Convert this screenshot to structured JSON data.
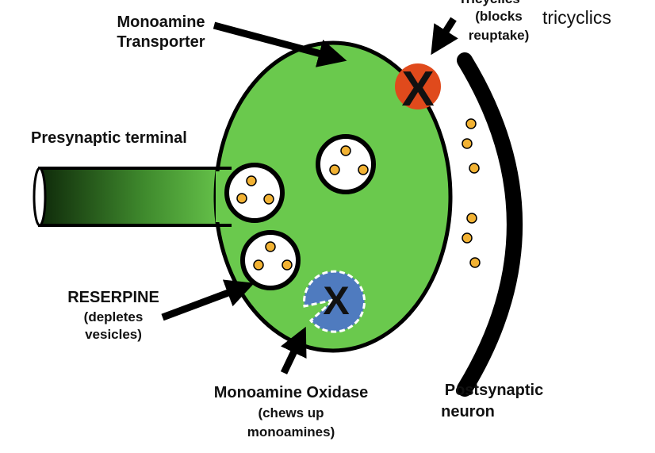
{
  "labels": {
    "transporter_line1": "Monoamine",
    "transporter_line2": "Transporter",
    "presynaptic": "Presynaptic terminal",
    "reserpine_line1": "RESERPINE",
    "reserpine_line2": "(depletes",
    "reserpine_line3": "vesicles)",
    "mao_line1": "Monoamine Oxidase",
    "mao_line2": "(chews up",
    "mao_line3": "monoamines)",
    "postsynaptic_line1": "Postsynaptic",
    "postsynaptic_line2": "neuron",
    "tricyclics_line1": "Tricyclics",
    "tricyclics_line2": "(blocks",
    "tricyclics_line3": "reuptake)",
    "tricyclics_side": "tricyclics",
    "block_mark": "X"
  },
  "colors": {
    "terminal_fill": "#6ac94d",
    "outline": "#000000",
    "transporter_block": "#e04a1c",
    "mao_enzyme": "#4f7bbf",
    "monoamine_dot": "#f2b233",
    "vesicle_fill": "#ffffff"
  }
}
